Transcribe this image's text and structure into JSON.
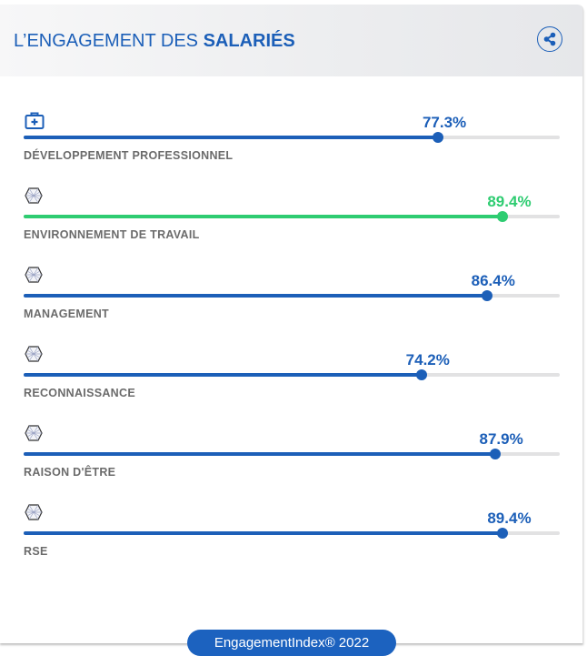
{
  "header": {
    "title_prefix": "L’ENGAGEMENT DES ",
    "title_bold": "SALARIÉS",
    "share_icon": "share-icon"
  },
  "colors": {
    "primary": "#1c5fb8",
    "highlight": "#2ecc71",
    "track": "#e2e2e3",
    "label": "#6b6b6b"
  },
  "rows": [
    {
      "label": "DÉVELOPPEMENT PROFESSIONNEL",
      "value": 77.3,
      "value_text": "77.3%",
      "icon": "medical-kit-icon",
      "highlight": false
    },
    {
      "label": "ENVIRONNEMENT DE TRAVAIL",
      "value": 89.4,
      "value_text": "89.4%",
      "icon": "broken-image-icon",
      "highlight": true
    },
    {
      "label": "MANAGEMENT",
      "value": 86.4,
      "value_text": "86.4%",
      "icon": "broken-image-icon",
      "highlight": false
    },
    {
      "label": "RECONNAISSANCE",
      "value": 74.2,
      "value_text": "74.2%",
      "icon": "broken-image-icon",
      "highlight": false
    },
    {
      "label": "RAISON D'ÊTRE",
      "value": 87.9,
      "value_text": "87.9%",
      "icon": "broken-image-icon",
      "highlight": false
    },
    {
      "label": "RSE",
      "value": 89.4,
      "value_text": "89.4%",
      "icon": "broken-image-icon",
      "highlight": false
    }
  ],
  "footer": {
    "badge": "EngagementIndex® 2022"
  }
}
